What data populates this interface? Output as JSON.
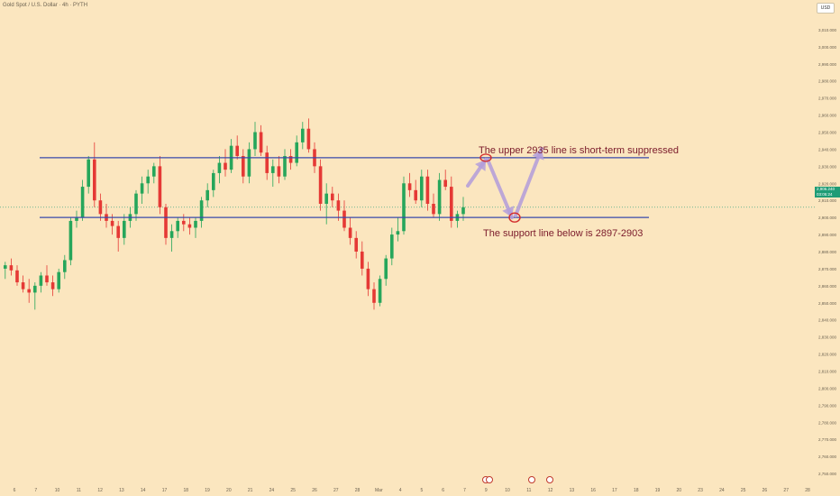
{
  "header": {
    "symbol_title": "Gold Spot / U.S. Dollar · 4h · PYTH",
    "currency_button": "USD"
  },
  "price_tag": {
    "price": "2,906.240",
    "countdown": "03:05:24"
  },
  "colors": {
    "background": "#fbe6bf",
    "up": "#26a65b",
    "down": "#e53935",
    "line": "#3949ab",
    "arrow": "#b39ddb",
    "text": "#7a1a2a"
  },
  "annotations": {
    "upper": "The upper 2935 line is short-term suppressed",
    "lower": "The support line below is 2897-2903"
  },
  "chart_data": {
    "type": "candlestick",
    "title": "Gold Spot / U.S. Dollar · 4h · PYTH",
    "ylim": [
      2740,
      3020
    ],
    "y_ticks": [
      "3,010.000",
      "3,000.000",
      "2,990.000",
      "2,980.000",
      "2,970.000",
      "2,960.000",
      "2,950.000",
      "2,940.000",
      "2,930.000",
      "2,920.000",
      "2,910.000",
      "2,900.000",
      "2,890.000",
      "2,880.000",
      "2,870.000",
      "2,860.000",
      "2,850.000",
      "2,840.000",
      "2,830.000",
      "2,820.000",
      "2,810.000",
      "2,800.000",
      "2,790.000",
      "2,780.000",
      "2,770.000",
      "2,760.000",
      "2,750.000"
    ],
    "x_ticks": [
      "6",
      "7",
      "10",
      "11",
      "12",
      "13",
      "14",
      "17",
      "18",
      "19",
      "20",
      "21",
      "24",
      "25",
      "26",
      "27",
      "28",
      "Mar",
      "4",
      "5",
      "6",
      "7",
      "9",
      "10",
      "11",
      "12",
      "13",
      "16",
      "17",
      "18",
      "19",
      "20",
      "23",
      "24",
      "25",
      "26",
      "27",
      "28"
    ],
    "candles": [
      [
        2870,
        2874,
        2864,
        2872
      ],
      [
        2872,
        2876,
        2866,
        2869
      ],
      [
        2869,
        2872,
        2860,
        2862
      ],
      [
        2862,
        2866,
        2856,
        2858
      ],
      [
        2858,
        2864,
        2850,
        2856
      ],
      [
        2856,
        2862,
        2846,
        2860
      ],
      [
        2860,
        2868,
        2856,
        2866
      ],
      [
        2866,
        2872,
        2860,
        2862
      ],
      [
        2862,
        2866,
        2854,
        2858
      ],
      [
        2858,
        2870,
        2856,
        2868
      ],
      [
        2868,
        2878,
        2864,
        2875
      ],
      [
        2875,
        2900,
        2872,
        2898
      ],
      [
        2898,
        2904,
        2894,
        2900
      ],
      [
        2900,
        2922,
        2898,
        2918
      ],
      [
        2918,
        2936,
        2914,
        2934
      ],
      [
        2934,
        2944,
        2906,
        2910
      ],
      [
        2910,
        2914,
        2898,
        2902
      ],
      [
        2902,
        2908,
        2894,
        2898
      ],
      [
        2898,
        2902,
        2890,
        2895
      ],
      [
        2895,
        2898,
        2880,
        2888
      ],
      [
        2888,
        2902,
        2884,
        2898
      ],
      [
        2898,
        2906,
        2894,
        2902
      ],
      [
        2902,
        2916,
        2898,
        2914
      ],
      [
        2914,
        2924,
        2908,
        2920
      ],
      [
        2920,
        2928,
        2914,
        2924
      ],
      [
        2924,
        2932,
        2920,
        2930
      ],
      [
        2930,
        2936,
        2902,
        2906
      ],
      [
        2906,
        2908,
        2884,
        2888
      ],
      [
        2888,
        2896,
        2880,
        2892
      ],
      [
        2892,
        2900,
        2888,
        2898
      ],
      [
        2898,
        2902,
        2892,
        2896
      ],
      [
        2896,
        2900,
        2890,
        2894
      ],
      [
        2894,
        2900,
        2888,
        2898
      ],
      [
        2898,
        2912,
        2894,
        2910
      ],
      [
        2910,
        2920,
        2906,
        2916
      ],
      [
        2916,
        2928,
        2912,
        2926
      ],
      [
        2926,
        2936,
        2920,
        2932
      ],
      [
        2932,
        2940,
        2924,
        2928
      ],
      [
        2928,
        2946,
        2926,
        2942
      ],
      [
        2942,
        2948,
        2934,
        2936
      ],
      [
        2936,
        2940,
        2920,
        2924
      ],
      [
        2924,
        2944,
        2920,
        2940
      ],
      [
        2940,
        2956,
        2936,
        2950
      ],
      [
        2950,
        2954,
        2936,
        2938
      ],
      [
        2938,
        2942,
        2922,
        2926
      ],
      [
        2926,
        2934,
        2918,
        2930
      ],
      [
        2930,
        2936,
        2920,
        2924
      ],
      [
        2924,
        2940,
        2922,
        2936
      ],
      [
        2936,
        2940,
        2928,
        2932
      ],
      [
        2932,
        2948,
        2930,
        2944
      ],
      [
        2944,
        2956,
        2940,
        2952
      ],
      [
        2952,
        2958,
        2938,
        2940
      ],
      [
        2940,
        2944,
        2926,
        2930
      ],
      [
        2930,
        2934,
        2904,
        2908
      ],
      [
        2908,
        2920,
        2896,
        2914
      ],
      [
        2914,
        2918,
        2906,
        2910
      ],
      [
        2910,
        2914,
        2898,
        2904
      ],
      [
        2904,
        2910,
        2892,
        2894
      ],
      [
        2894,
        2900,
        2884,
        2888
      ],
      [
        2888,
        2892,
        2876,
        2880
      ],
      [
        2880,
        2886,
        2866,
        2870
      ],
      [
        2870,
        2874,
        2854,
        2858
      ],
      [
        2858,
        2862,
        2846,
        2850
      ],
      [
        2850,
        2866,
        2848,
        2864
      ],
      [
        2864,
        2878,
        2860,
        2876
      ],
      [
        2876,
        2894,
        2872,
        2890
      ],
      [
        2890,
        2900,
        2886,
        2892
      ],
      [
        2892,
        2924,
        2890,
        2920
      ],
      [
        2920,
        2926,
        2912,
        2916
      ],
      [
        2916,
        2922,
        2908,
        2910
      ],
      [
        2910,
        2928,
        2906,
        2924
      ],
      [
        2924,
        2928,
        2904,
        2908
      ],
      [
        2908,
        2914,
        2900,
        2902
      ],
      [
        2902,
        2926,
        2898,
        2922
      ],
      [
        2922,
        2928,
        2916,
        2918
      ],
      [
        2918,
        2924,
        2894,
        2898
      ],
      [
        2898,
        2904,
        2894,
        2902
      ],
      [
        2902,
        2912,
        2898,
        2906
      ]
    ],
    "horizontal_lines": [
      {
        "name": "resistance",
        "value": 2935
      },
      {
        "name": "support",
        "value": 2900
      }
    ]
  }
}
